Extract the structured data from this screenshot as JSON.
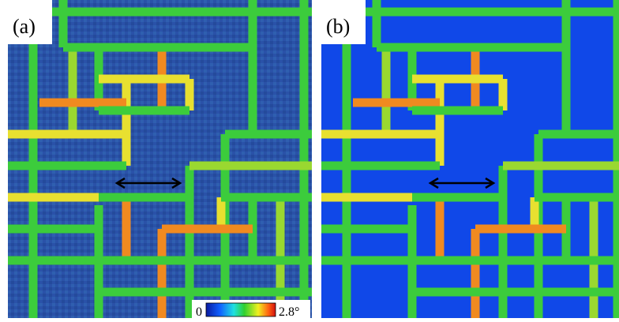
{
  "panels": [
    {
      "label": "(a)"
    },
    {
      "label": "(b)"
    }
  ],
  "colorbar": {
    "min_label": "0",
    "max_label": "2.8°"
  }
}
